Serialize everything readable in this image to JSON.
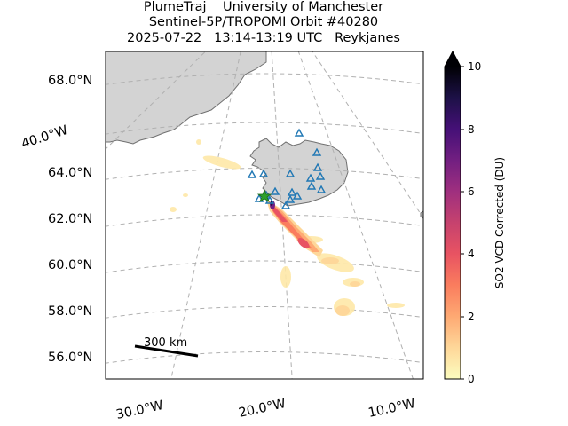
{
  "header": {
    "line1": "PlumeTraj    University of Manchester",
    "line2": "Sentinel-5P/TROPOMI Orbit #40280",
    "line3": "2025-07-22   13:14-13:19 UTC   Reykjanes"
  },
  "map": {
    "lat_labels": [
      "68.0°N",
      "64.0°N",
      "62.0°N",
      "60.0°N",
      "58.0°N",
      "56.0°N"
    ],
    "lon_labels": [
      "40.0°W",
      "30.0°W",
      "20.0°W",
      "10.0°W"
    ],
    "scale_bar_label": "300 km",
    "land_color": "#d3d3d3",
    "coast_color": "#707070",
    "grid_color": "#b0b0b0",
    "station_marker_color": "#1f77b4",
    "vent_marker_color": "#2ca02c"
  },
  "colorbar": {
    "label": "SO2 VCD Corrected (DU)",
    "ticks": [
      "0",
      "2",
      "4",
      "6",
      "8",
      "10"
    ],
    "min": 0,
    "max": 10,
    "colormap": "magma_r",
    "extend": "max"
  }
}
